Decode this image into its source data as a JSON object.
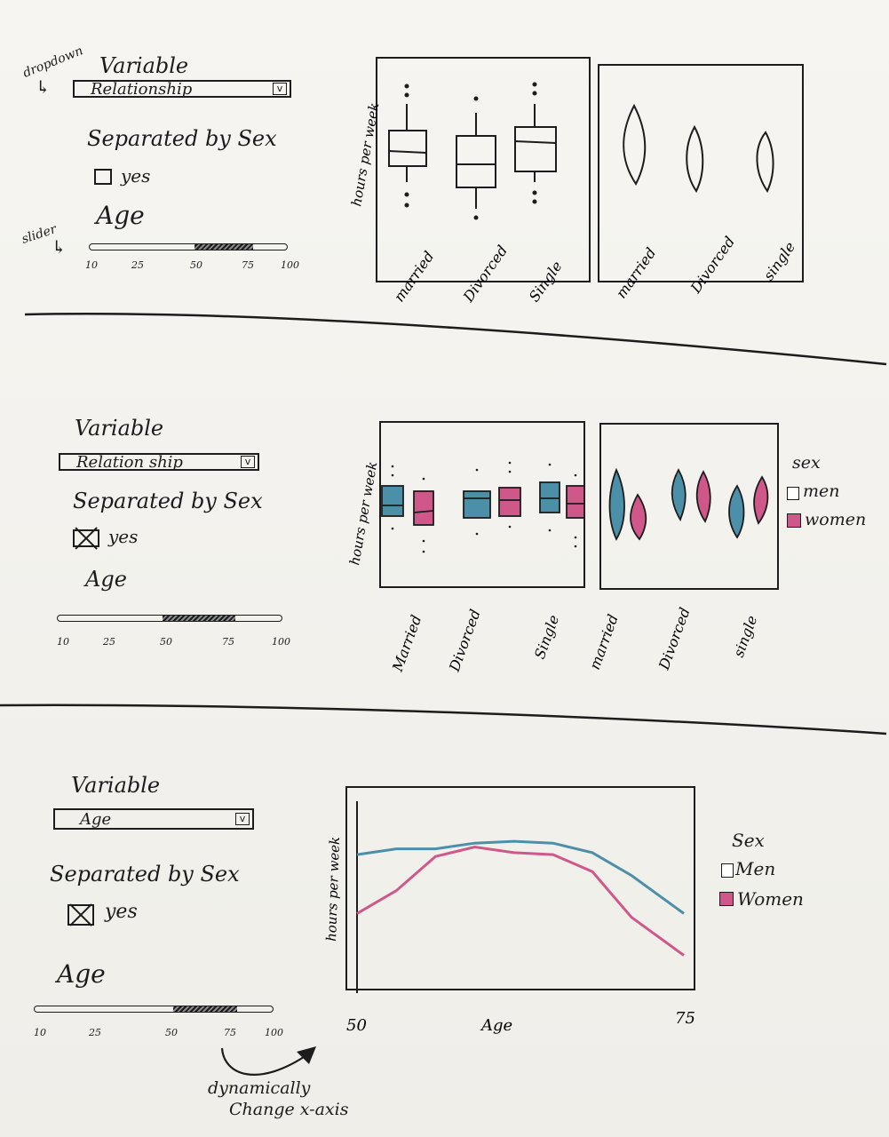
{
  "annotations": {
    "dropdown": "dropdown",
    "slider": "slider",
    "dynamic_1": "dynamically",
    "dynamic_2": "Change x-axis"
  },
  "colors": {
    "ink": "#1c1c1c",
    "men": "#4c8fa8",
    "women": "#d0578a"
  },
  "panels": [
    {
      "variable_label": "Variable",
      "dropdown_value": "Relationship",
      "dropdown_icon": "chevron-down-icon",
      "sex_label": "Separated by Sex",
      "checkbox_checked": false,
      "checkbox_label": "yes",
      "age_label": "Age",
      "slider_ticks": [
        "10",
        "25",
        "50",
        "75",
        "100"
      ],
      "slider_range": [
        50,
        75
      ]
    },
    {
      "variable_label": "Variable",
      "dropdown_value": "Relation ship",
      "dropdown_icon": "chevron-down-icon",
      "sex_label": "Separated by Sex",
      "checkbox_checked": true,
      "checkbox_label": "yes",
      "age_label": "Age",
      "slider_ticks": [
        "10",
        "25",
        "50",
        "75",
        "100"
      ],
      "slider_range": [
        50,
        75
      ]
    },
    {
      "variable_label": "Variable",
      "dropdown_value": "Age",
      "dropdown_icon": "chevron-down-icon",
      "sex_label": "Separated by Sex",
      "checkbox_checked": true,
      "checkbox_label": "yes",
      "age_label": "Age",
      "slider_ticks": [
        "10",
        "25",
        "50",
        "75",
        "100"
      ],
      "slider_range": [
        50,
        75
      ]
    }
  ],
  "chart_data": [
    {
      "type": "box",
      "ylabel": "hours per week",
      "categories": [
        "married",
        "Divorced",
        "Single"
      ]
    },
    {
      "type": "violin",
      "categories": [
        "married",
        "Divorced",
        "single"
      ]
    },
    {
      "type": "box",
      "ylabel": "hours per week",
      "categories": [
        "Married",
        "Divorced",
        "Single"
      ],
      "series": [
        {
          "name": "men"
        },
        {
          "name": "women"
        }
      ]
    },
    {
      "type": "violin",
      "categories": [
        "married",
        "Divorced",
        "single"
      ],
      "series": [
        {
          "name": "men"
        },
        {
          "name": "women"
        }
      ]
    },
    {
      "type": "line",
      "ylabel": "hours per week",
      "xlabel": "Age",
      "x_ticks": [
        "50",
        "75"
      ],
      "series": [
        {
          "name": "Men",
          "x": [
            50,
            53,
            56,
            59,
            62,
            65,
            68,
            71,
            75
          ],
          "y": [
            0.71,
            0.74,
            0.74,
            0.77,
            0.78,
            0.77,
            0.72,
            0.6,
            0.4
          ]
        },
        {
          "name": "Women",
          "x": [
            50,
            53,
            56,
            59,
            62,
            65,
            68,
            71,
            75
          ],
          "y": [
            0.4,
            0.52,
            0.7,
            0.75,
            0.72,
            0.71,
            0.62,
            0.38,
            0.18
          ]
        }
      ]
    }
  ],
  "legends": [
    {
      "title": "sex",
      "items": [
        "men",
        "women"
      ]
    },
    {
      "title": "Sex",
      "items": [
        "Men",
        "Women"
      ]
    }
  ]
}
